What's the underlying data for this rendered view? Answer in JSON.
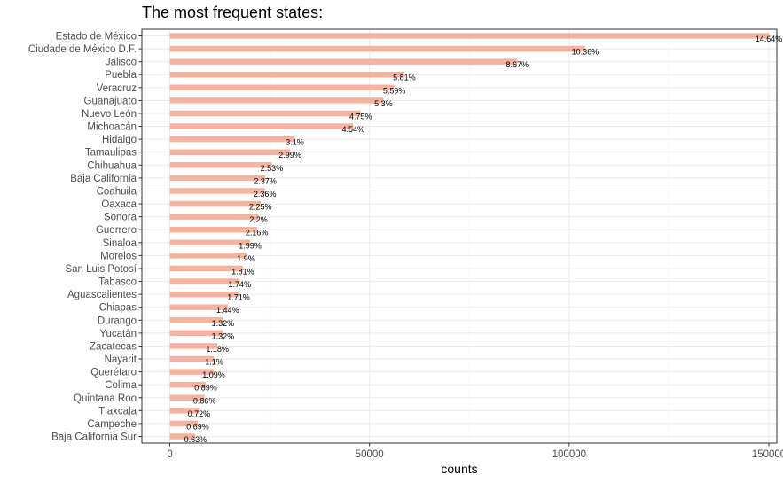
{
  "chart_data": {
    "type": "bar",
    "orientation": "horizontal",
    "title": "The most frequent states:",
    "xlabel": "counts",
    "ylabel": "",
    "xlim": [
      -7000,
      152000
    ],
    "x_ticks": [
      0,
      50000,
      100000,
      150000
    ],
    "x_tick_labels": [
      "0",
      "50000",
      "100000",
      "150000"
    ],
    "grid": true,
    "legend": "none",
    "bar_color": "#f4b3a0",
    "panel_border_color": "#333333",
    "grid_color": "#ebebeb",
    "categories": [
      "Estado de México",
      "Ciudade de México D.F.",
      "Jalisco",
      "Puebla",
      "Veracruz",
      "Guanajuato",
      "Nuevo León",
      "Michoacán",
      "Hidalgo",
      "Tamaulipas",
      "Chihuahua",
      "Baja California",
      "Coahuila",
      "Oaxaca",
      "Sonora",
      "Guerrero",
      "Sinaloa",
      "Morelos",
      "San Luis Potosí",
      "Tabasco",
      "Aguascalientes",
      "Chiapas",
      "Durango",
      "Yucatán",
      "Zacatecas",
      "Nayarit",
      "Querétaro",
      "Colima",
      "Quintana Roo",
      "Tlaxcala",
      "Campeche",
      "Baja California Sur"
    ],
    "values": [
      150000,
      104000,
      87000,
      58700,
      56200,
      53500,
      47800,
      45900,
      31300,
      30100,
      25500,
      23900,
      23800,
      22700,
      22200,
      21800,
      20100,
      19100,
      18300,
      17500,
      17200,
      14500,
      13300,
      13300,
      11900,
      11100,
      11000,
      9000,
      8700,
      7300,
      7000,
      6400
    ],
    "labels": [
      "14.64%",
      "10.36%",
      "8.67%",
      "5.81%",
      "5.59%",
      "5.3%",
      "4.75%",
      "4.54%",
      "3.1%",
      "2.99%",
      "2.53%",
      "2.37%",
      "2.36%",
      "2.25%",
      "2.2%",
      "2.16%",
      "1.99%",
      "1.9%",
      "1.81%",
      "1.74%",
      "1.71%",
      "1.44%",
      "1.32%",
      "1.32%",
      "1.18%",
      "1.1%",
      "1.09%",
      "0.89%",
      "0.86%",
      "0.72%",
      "0.69%",
      "0.63%"
    ]
  }
}
